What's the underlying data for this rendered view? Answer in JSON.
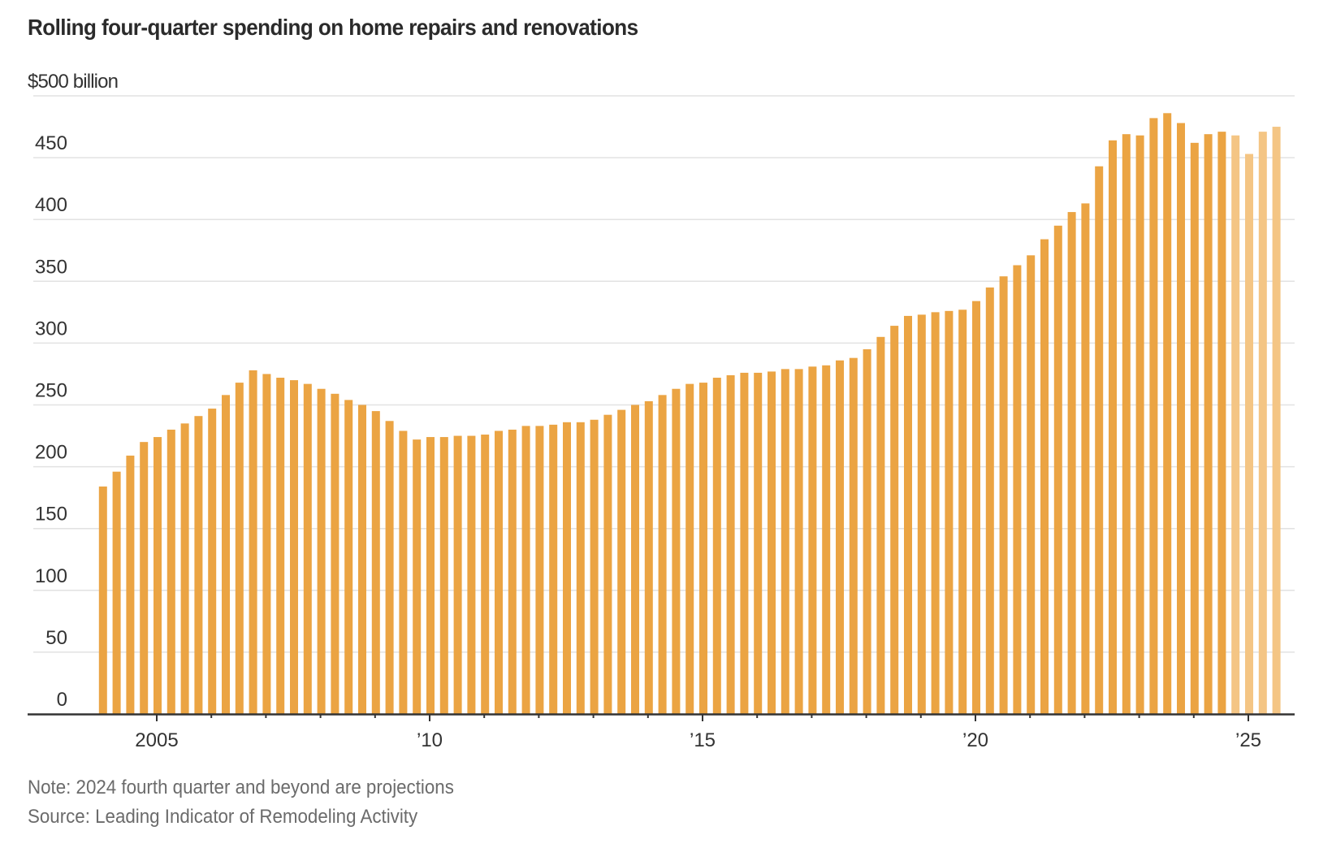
{
  "chart_data": {
    "type": "bar",
    "title": "Rolling four-quarter spending on home repairs and renovations",
    "xlabel": "",
    "ylabel": "$ billion",
    "y_unit_label": "$500 billion",
    "ylim": [
      0,
      500
    ],
    "yticks": [
      0,
      50,
      100,
      150,
      200,
      250,
      300,
      350,
      400,
      450,
      500
    ],
    "ytick_labels": [
      "0",
      "50",
      "100",
      "150",
      "200",
      "250",
      "300",
      "350",
      "400",
      "450",
      "$500 billion"
    ],
    "xticks_years": [
      2005,
      2006,
      2007,
      2008,
      2009,
      2010,
      2011,
      2012,
      2013,
      2014,
      2015,
      2016,
      2017,
      2018,
      2019,
      2020,
      2021,
      2022,
      2023,
      2024,
      2025
    ],
    "xtick_labels": [
      {
        "year": 2005,
        "label": "2005"
      },
      {
        "year": 2010,
        "label": "’10"
      },
      {
        "year": 2015,
        "label": "’15"
      },
      {
        "year": 2020,
        "label": "’20"
      },
      {
        "year": 2025,
        "label": "’25"
      }
    ],
    "grid": true,
    "start": {
      "year": 2004,
      "quarter": 1
    },
    "series": [
      {
        "name": "Rolling four-quarter spending",
        "values": [
          184,
          196,
          209,
          220,
          224,
          230,
          235,
          241,
          247,
          258,
          268,
          278,
          275,
          272,
          270,
          267,
          263,
          259,
          254,
          250,
          245,
          237,
          229,
          222,
          224,
          224,
          225,
          225,
          226,
          229,
          230,
          233,
          233,
          234,
          236,
          236,
          238,
          242,
          246,
          250,
          253,
          258,
          263,
          267,
          268,
          272,
          274,
          276,
          276,
          277,
          279,
          279,
          281,
          282,
          286,
          288,
          295,
          305,
          314,
          322,
          323,
          325,
          326,
          327,
          334,
          345,
          354,
          363,
          371,
          384,
          395,
          406,
          413,
          443,
          464,
          469,
          468,
          482,
          486,
          478,
          462,
          469,
          471,
          468,
          453,
          471,
          475
        ],
        "projection_start_index": 83
      }
    ],
    "colors": {
      "actual": "#eba443",
      "projection": "#f4c584",
      "grid": "#e2e2e2",
      "axis": "#333333"
    }
  },
  "notes": {
    "note": "Note: 2024 fourth quarter and beyond are projections",
    "source": "Source: Leading Indicator of Remodeling Activity"
  }
}
